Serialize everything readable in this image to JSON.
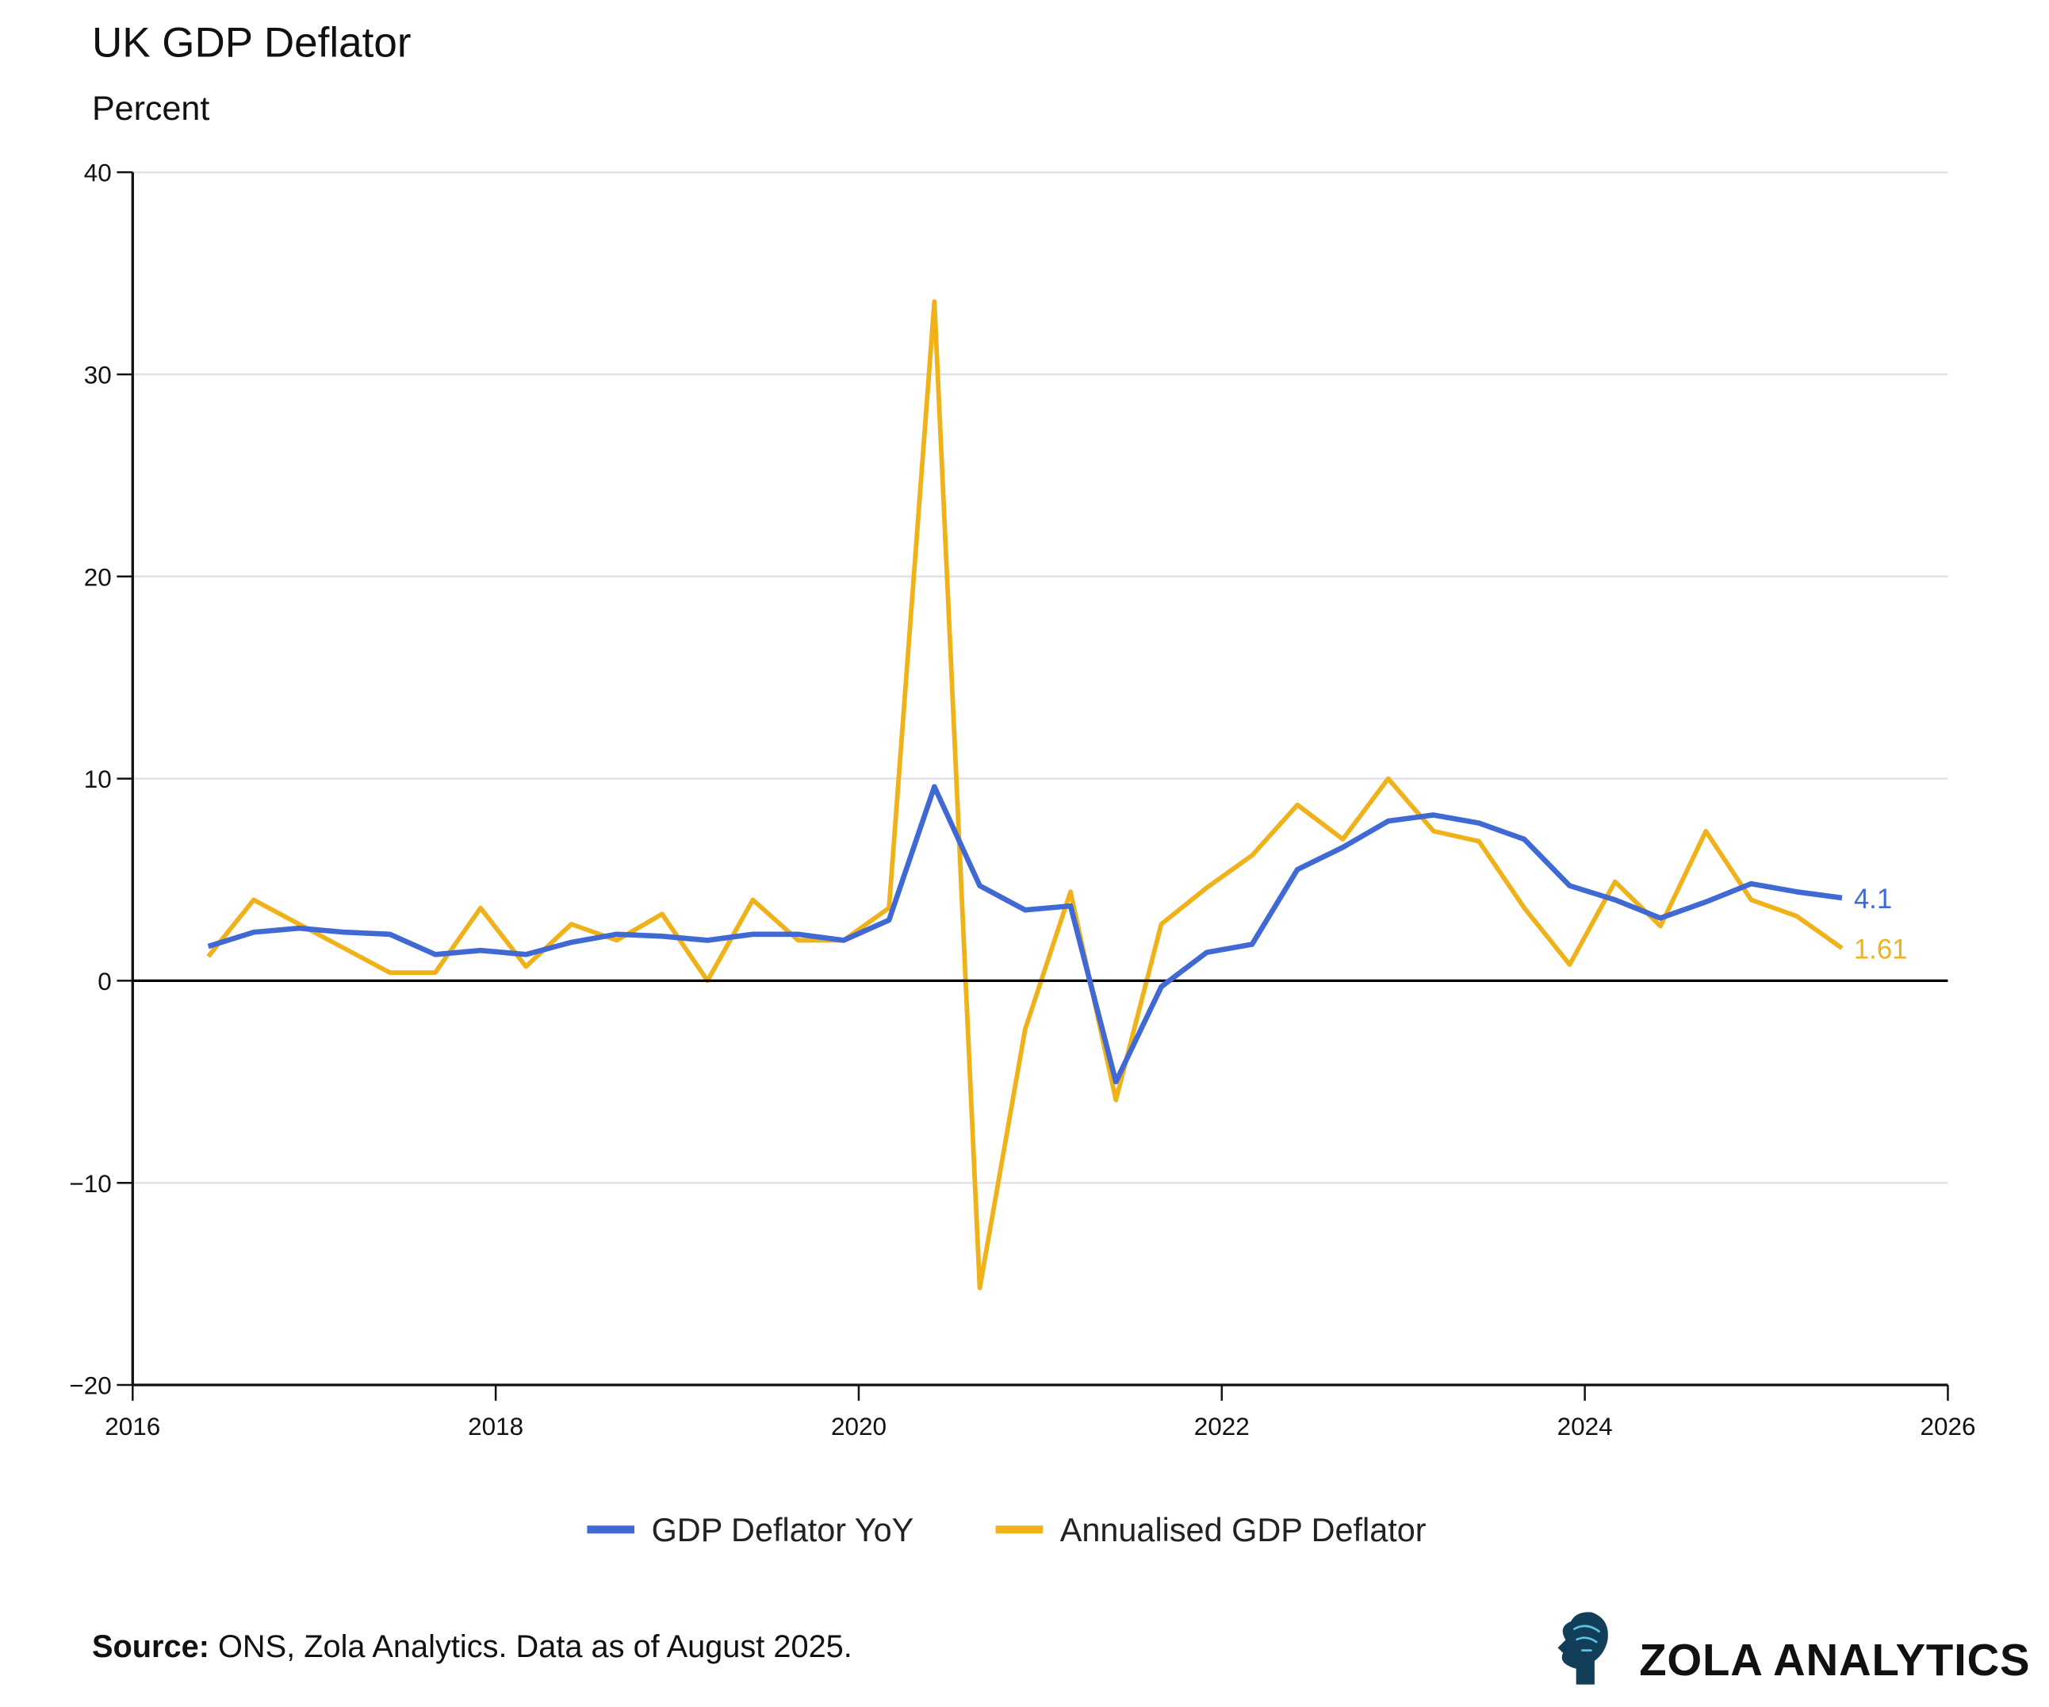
{
  "chart_data": {
    "type": "line",
    "title": "UK GDP Deflator",
    "subtitle": "Percent",
    "xlabel": "",
    "ylabel": "",
    "xlim": [
      "2016",
      "2026"
    ],
    "ylim": [
      -20,
      40
    ],
    "x_ticks": [
      "2016",
      "2018",
      "2020",
      "2022",
      "2024",
      "2026"
    ],
    "y_ticks": [
      "40",
      "30",
      "20",
      "10",
      "0",
      "−10",
      "−20"
    ],
    "y_tick_values": [
      40,
      30,
      20,
      10,
      0,
      -10,
      -20
    ],
    "grid": "horizontal",
    "legend_position": "bottom",
    "x": [
      "2016-06",
      "2016-09",
      "2016-12",
      "2017-03",
      "2017-06",
      "2017-09",
      "2017-12",
      "2018-03",
      "2018-06",
      "2018-09",
      "2018-12",
      "2019-03",
      "2019-06",
      "2019-09",
      "2019-12",
      "2020-03",
      "2020-06",
      "2020-09",
      "2020-12",
      "2021-03",
      "2021-06",
      "2021-09",
      "2021-12",
      "2022-03",
      "2022-06",
      "2022-09",
      "2022-12",
      "2023-03",
      "2023-06",
      "2023-09",
      "2023-12",
      "2024-03",
      "2024-06",
      "2024-09",
      "2024-12",
      "2025-03",
      "2025-06"
    ],
    "series": [
      {
        "name": "GDP Deflator YoY",
        "color": "#4169D4",
        "end_label": "4.1",
        "values": [
          1.7,
          2.4,
          2.6,
          2.4,
          2.3,
          1.3,
          1.5,
          1.3,
          1.9,
          2.3,
          2.2,
          2.0,
          2.3,
          2.3,
          2.0,
          3.0,
          9.6,
          4.7,
          3.5,
          3.7,
          -5.0,
          -0.3,
          1.4,
          1.8,
          5.5,
          6.6,
          7.9,
          8.2,
          7.8,
          7.0,
          4.7,
          4.0,
          3.1,
          3.9,
          4.8,
          4.4,
          4.1
        ]
      },
      {
        "name": "Annualised GDP Deflator",
        "color": "#EFB21B",
        "end_label": "1.61",
        "values": [
          1.2,
          4.0,
          2.8,
          1.6,
          0.4,
          0.4,
          3.6,
          0.7,
          2.8,
          2.0,
          3.3,
          0.0,
          4.0,
          2.0,
          2.0,
          3.6,
          33.6,
          -15.2,
          -2.4,
          4.4,
          -5.9,
          2.8,
          4.6,
          6.2,
          8.7,
          7.0,
          10.0,
          7.4,
          6.9,
          3.6,
          0.8,
          4.9,
          2.7,
          7.4,
          4.0,
          3.2,
          1.61
        ]
      }
    ]
  },
  "footer": {
    "source_label": "Source:",
    "source_text": " ONS, Zola Analytics. Data as of August 2025.",
    "brand": "ZOLA ANALYTICS"
  }
}
